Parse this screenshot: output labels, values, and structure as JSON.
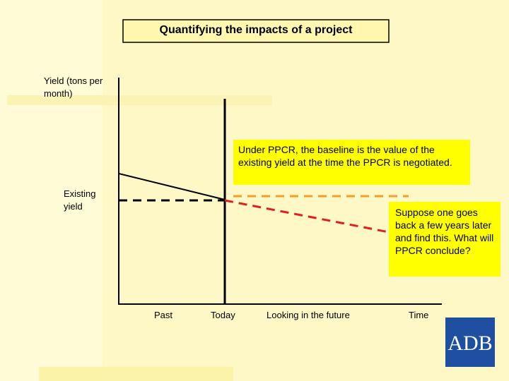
{
  "title": "Quantifying the impacts of a project",
  "y_axis_label": "Yield (tons per month)",
  "existing_label": "Existing yield",
  "x_labels": [
    "Past",
    "Today",
    "Looking in the future",
    "Time"
  ],
  "annotations": [
    "Under PPCR, the baseline is the value of the existing yield at the time the PPCR is negotiated.",
    "Suppose one goes back a few years later and find this. What will PPCR conclude?"
  ],
  "logo": "ADB"
}
